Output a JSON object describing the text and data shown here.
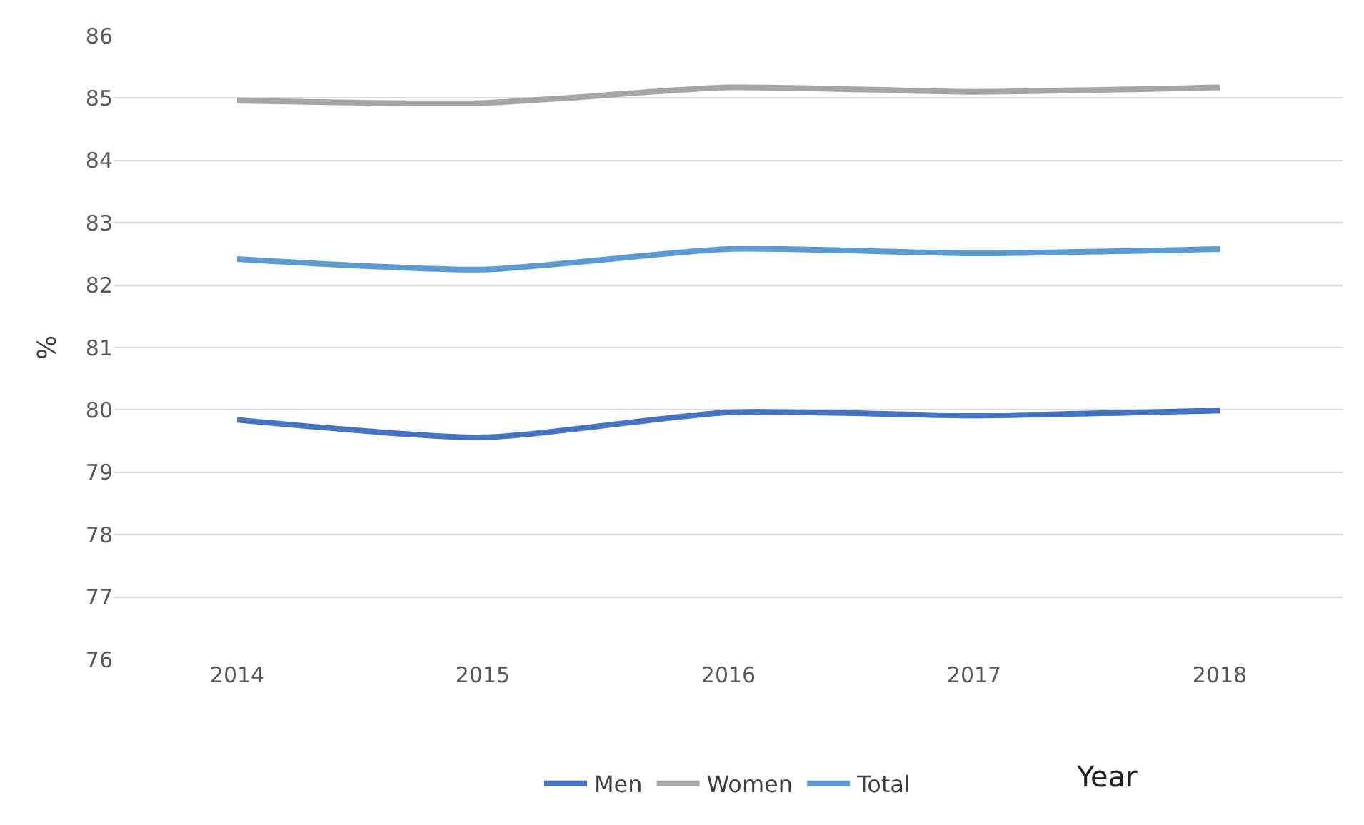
{
  "chart_data": {
    "type": "line",
    "xlabel": "Year",
    "ylabel": "%",
    "categories": [
      "2014",
      "2015",
      "2016",
      "2017",
      "2018"
    ],
    "series": [
      {
        "name": "Men",
        "color": "#4472c4",
        "values": [
          79.84,
          79.56,
          79.96,
          79.91,
          79.99
        ]
      },
      {
        "name": "Women",
        "color": "#a5a5a5",
        "values": [
          84.96,
          84.92,
          85.17,
          85.1,
          85.17
        ]
      },
      {
        "name": "Total",
        "color": "#5b9bd5",
        "values": [
          82.42,
          82.25,
          82.58,
          82.51,
          82.58
        ]
      }
    ],
    "ylim": [
      76,
      86
    ],
    "yticks": [
      76,
      77,
      78,
      79,
      80,
      81,
      82,
      83,
      84,
      85,
      86
    ],
    "grid": "y",
    "legend": "bottom",
    "marker": "none",
    "line_style": "solid"
  }
}
